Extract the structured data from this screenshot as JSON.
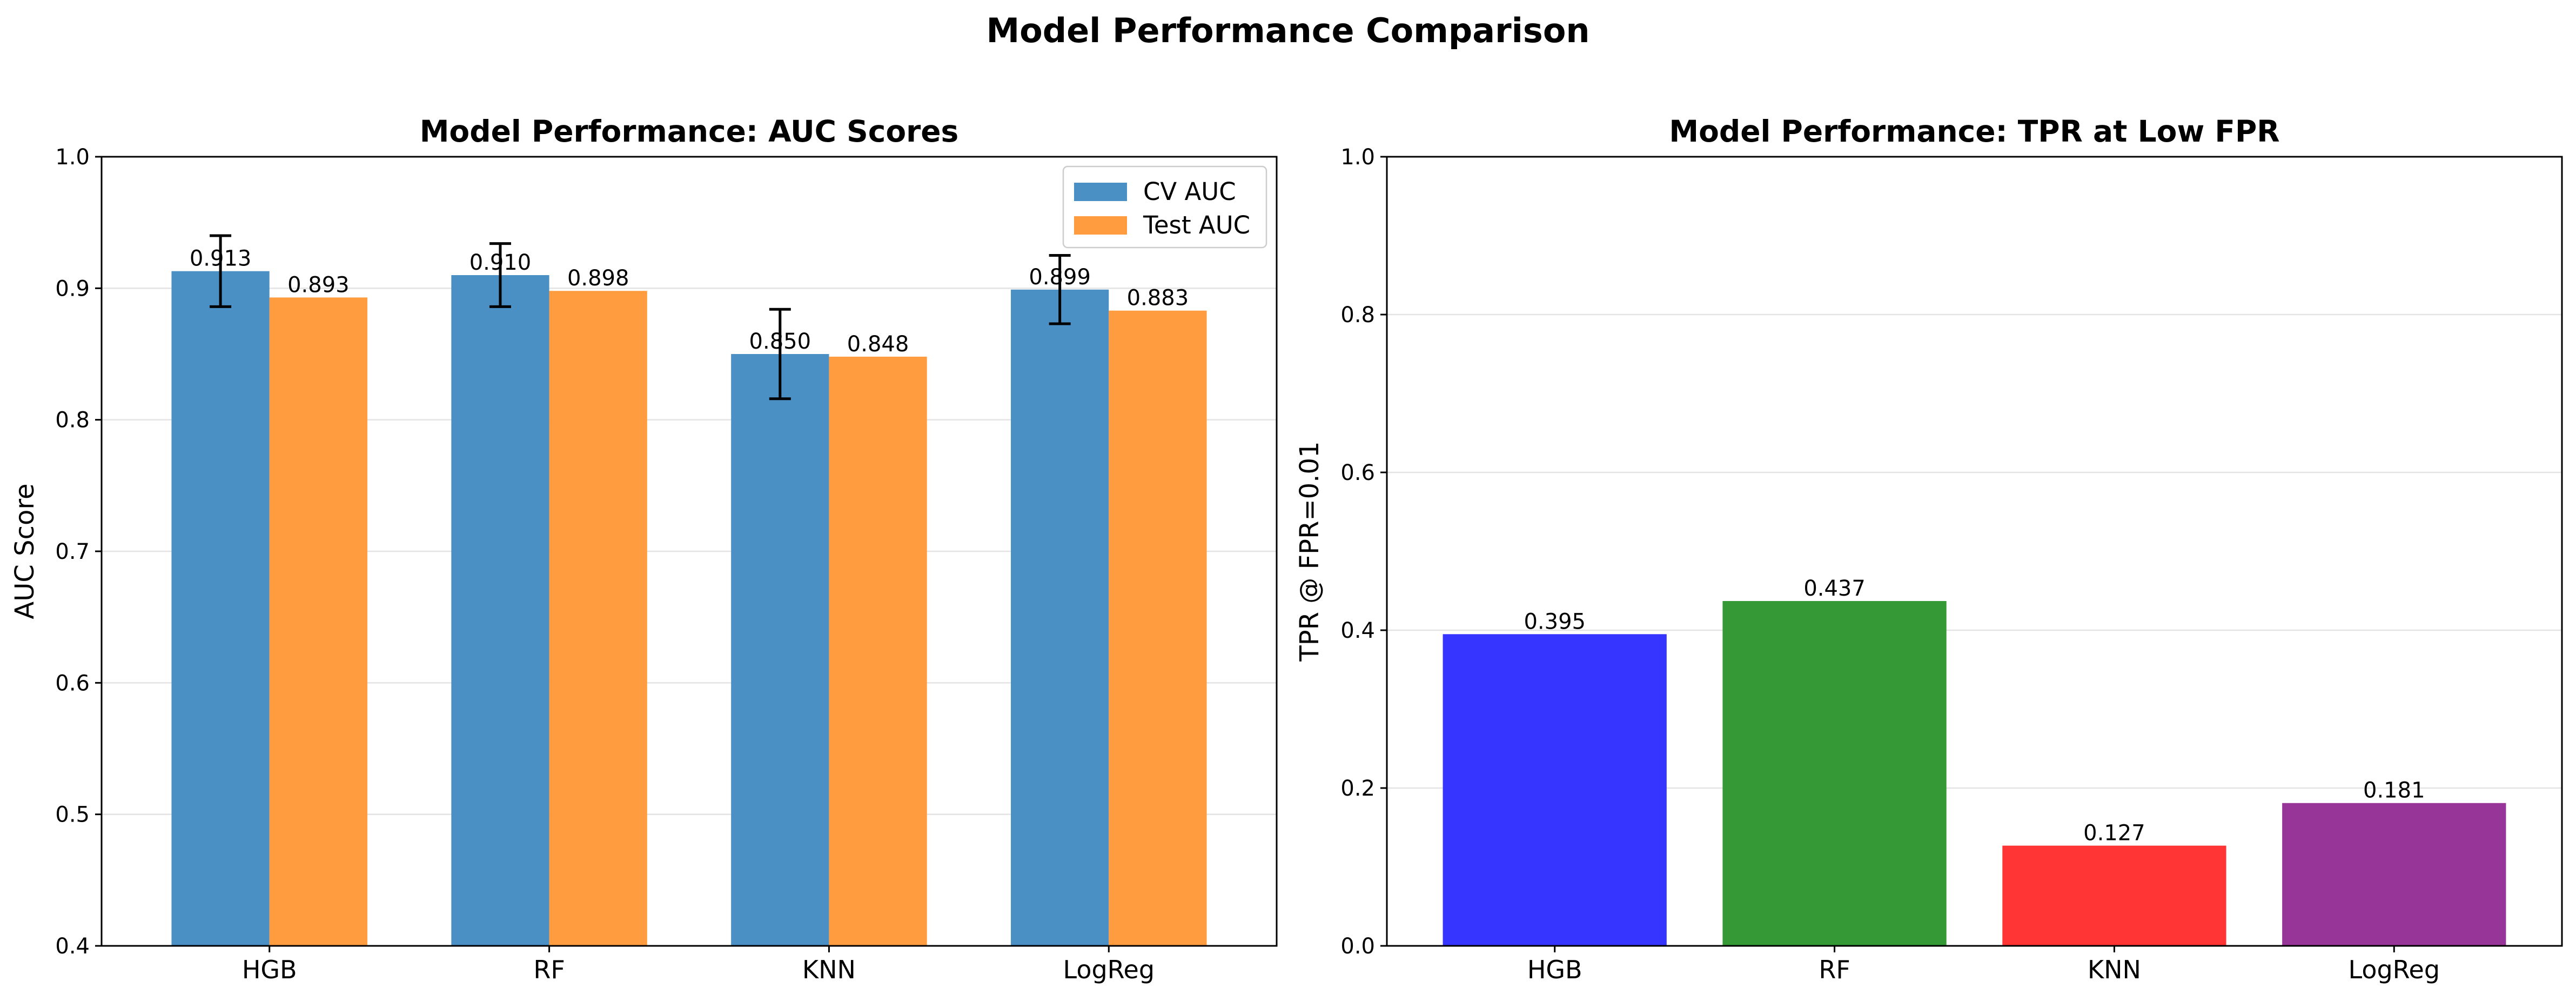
{
  "figure": {
    "title": "Model Performance Comparison"
  },
  "colors": {
    "cv_auc": "#4a90c4",
    "test_auc": "#ff9c40",
    "HGB": "#3535ff",
    "RF": "#359935",
    "KNN": "#ff3535",
    "LogReg": "#983598"
  },
  "chart_data": [
    {
      "type": "bar",
      "title": "Model Performance: AUC Scores",
      "xlabel": "",
      "ylabel": "AUC Score",
      "categories": [
        "HGB",
        "RF",
        "KNN",
        "LogReg"
      ],
      "series": [
        {
          "name": "CV AUC",
          "values": [
            0.913,
            0.91,
            0.85,
            0.899
          ],
          "errors": [
            0.027,
            0.024,
            0.034,
            0.026
          ],
          "labels": [
            "0.913",
            "0.910",
            "0.850",
            "0.899"
          ]
        },
        {
          "name": "Test AUC",
          "values": [
            0.893,
            0.898,
            0.848,
            0.883
          ],
          "labels": [
            "0.893",
            "0.898",
            "0.848",
            "0.883"
          ]
        }
      ],
      "ylim": [
        0.4,
        1.0
      ],
      "yticks": [
        "0.4",
        "0.5",
        "0.6",
        "0.7",
        "0.8",
        "0.9",
        "1.0"
      ],
      "grid": true,
      "legend": "upper right"
    },
    {
      "type": "bar",
      "title": "Model Performance: TPR at Low FPR",
      "xlabel": "",
      "ylabel": "TPR @ FPR=0.01",
      "categories": [
        "HGB",
        "RF",
        "KNN",
        "LogReg"
      ],
      "values": [
        0.395,
        0.437,
        0.127,
        0.181
      ],
      "labels": [
        "0.395",
        "0.437",
        "0.127",
        "0.181"
      ],
      "ylim": [
        0.0,
        1.0
      ],
      "yticks": [
        "0.0",
        "0.2",
        "0.4",
        "0.6",
        "0.8",
        "1.0"
      ],
      "grid": true
    }
  ]
}
